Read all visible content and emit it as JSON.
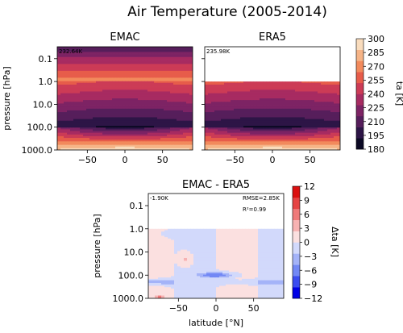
{
  "title": "Air Temperature (2005-2014)",
  "chart_data": [
    {
      "type": "heatmap",
      "panel": "EMAC",
      "title": "EMAC",
      "mean_label": "232.64K",
      "xlabel": "",
      "ylabel": "pressure [hPa]",
      "xlim": [
        -90,
        90
      ],
      "xticks": [
        -50,
        0,
        50
      ],
      "ylim_pressure": [
        1000,
        0.03
      ],
      "ytick_labels": [
        "0.1",
        "1.0",
        "10.0",
        "100.0",
        "1000.0"
      ],
      "yticks": [
        0.1,
        1,
        10,
        100,
        1000
      ],
      "yscale": "log",
      "top_pressure": 0.03
    },
    {
      "type": "heatmap",
      "panel": "ERA5",
      "title": "ERA5",
      "mean_label": "235.98K",
      "xlabel": "",
      "xlim": [
        -90,
        90
      ],
      "xticks": [
        -50,
        0,
        50
      ],
      "ylim_pressure": [
        1000,
        0.03
      ],
      "yscale": "log",
      "top_pressure": 1
    },
    {
      "type": "heatmap",
      "panel": "difference",
      "title": "EMAC - ERA5",
      "mean_label": "-1.90K",
      "rmse_label": "RMSE=2.85K",
      "r2_label": "R²=0.99",
      "xlabel": "latitude [°N]",
      "ylabel": "pressure [hPa]",
      "xlim": [
        -90,
        90
      ],
      "xticks": [
        -50,
        0,
        50
      ],
      "ytick_labels": [
        "0.1",
        "1.0",
        "10.0",
        "100.0",
        "1000.0"
      ],
      "yticks": [
        0.1,
        1,
        10,
        100,
        1000
      ],
      "yscale": "log",
      "top_pressure": 1
    }
  ],
  "colorbar_ta": {
    "label": "ta [K]",
    "ticks": [
      "300",
      "285",
      "270",
      "255",
      "240",
      "225",
      "210",
      "195",
      "180"
    ],
    "range": [
      180,
      300
    ],
    "colors": [
      "#0b0924",
      "#2d1546",
      "#561e5b",
      "#7d2364",
      "#a72b61",
      "#cc3b56",
      "#e75c4a",
      "#f28a5c",
      "#f6b487",
      "#f9dcbd"
    ]
  },
  "colorbar_dta": {
    "label": "Δta [K]",
    "ticks": [
      "12",
      "9",
      "6",
      "3",
      "0",
      "-3",
      "-6",
      "-9",
      "-12"
    ],
    "range": [
      -12,
      12
    ],
    "colors": [
      "#0000e6",
      "#3b4cf0",
      "#7288f5",
      "#a4b3f8",
      "#d2d9fb",
      "#fbe0e0",
      "#f7b2b2",
      "#ef7a7a",
      "#e64444",
      "#db1010"
    ]
  }
}
